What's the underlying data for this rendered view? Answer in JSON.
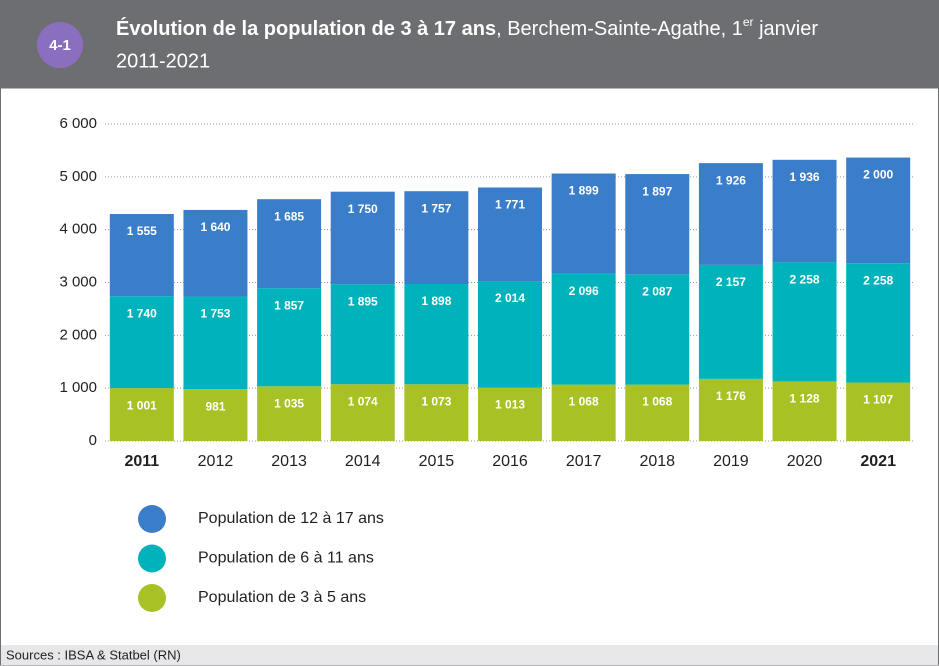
{
  "badge": "4-1",
  "chart_data": {
    "type": "stacked_bar",
    "title": "Évolution de la population de 3 à 17 ans",
    "subtitle": ", Berchem-Sainte-Agathe, 1",
    "subtitle_sup": "er",
    "subtitle_end": " janvier",
    "date_range": "2011-2021",
    "categories": [
      "2011",
      "2012",
      "2013",
      "2014",
      "2015",
      "2016",
      "2017",
      "2018",
      "2019",
      "2020",
      "2021"
    ],
    "bold_categories": [
      0,
      10
    ],
    "series": [
      {
        "name": "Population de 3 à 5 ans",
        "color": "#a8c124",
        "values": [
          1001,
          981,
          1035,
          1074,
          1073,
          1013,
          1068,
          1068,
          1176,
          1128,
          1107
        ],
        "value_labels": [
          "1 001",
          "981",
          "1 035",
          "1 074",
          "1 073",
          "1 013",
          "1 068",
          "1 068",
          "1 176",
          "1 128",
          "1 107"
        ]
      },
      {
        "name": "Population de 6 à 11 ans",
        "color": "#00b2bc",
        "values": [
          1740,
          1753,
          1857,
          1895,
          1898,
          2014,
          2096,
          2087,
          2157,
          2258,
          2258
        ],
        "value_labels": [
          "1 740",
          "1 753",
          "1 857",
          "1 895",
          "1 898",
          "2 014",
          "2 096",
          "2 087",
          "2 157",
          "2 258",
          "2 258"
        ]
      },
      {
        "name": "Population de 12 à 17 ans",
        "color": "#3a7dc9",
        "values": [
          1555,
          1640,
          1685,
          1750,
          1757,
          1771,
          1899,
          1897,
          1926,
          1936,
          2000
        ],
        "value_labels": [
          "1 555",
          "1 640",
          "1 685",
          "1 750",
          "1 757",
          "1 771",
          "1 899",
          "1 897",
          "1 926",
          "1 936",
          "2 000"
        ]
      }
    ],
    "ylim": [
      0,
      6000
    ],
    "yticks": [
      0,
      {
        "value": 1000,
        "label": "1 000"
      },
      {
        "value": 2000,
        "label": "2 000"
      },
      {
        "value": 3000,
        "label": "3 000"
      },
      {
        "value": 4000,
        "label": "4 000"
      },
      {
        "value": 5000,
        "label": "5 000"
      },
      {
        "value": 6000,
        "label": "6 000"
      }
    ],
    "grid": true,
    "source": "Sources : IBSA & Statbel (RN)"
  }
}
